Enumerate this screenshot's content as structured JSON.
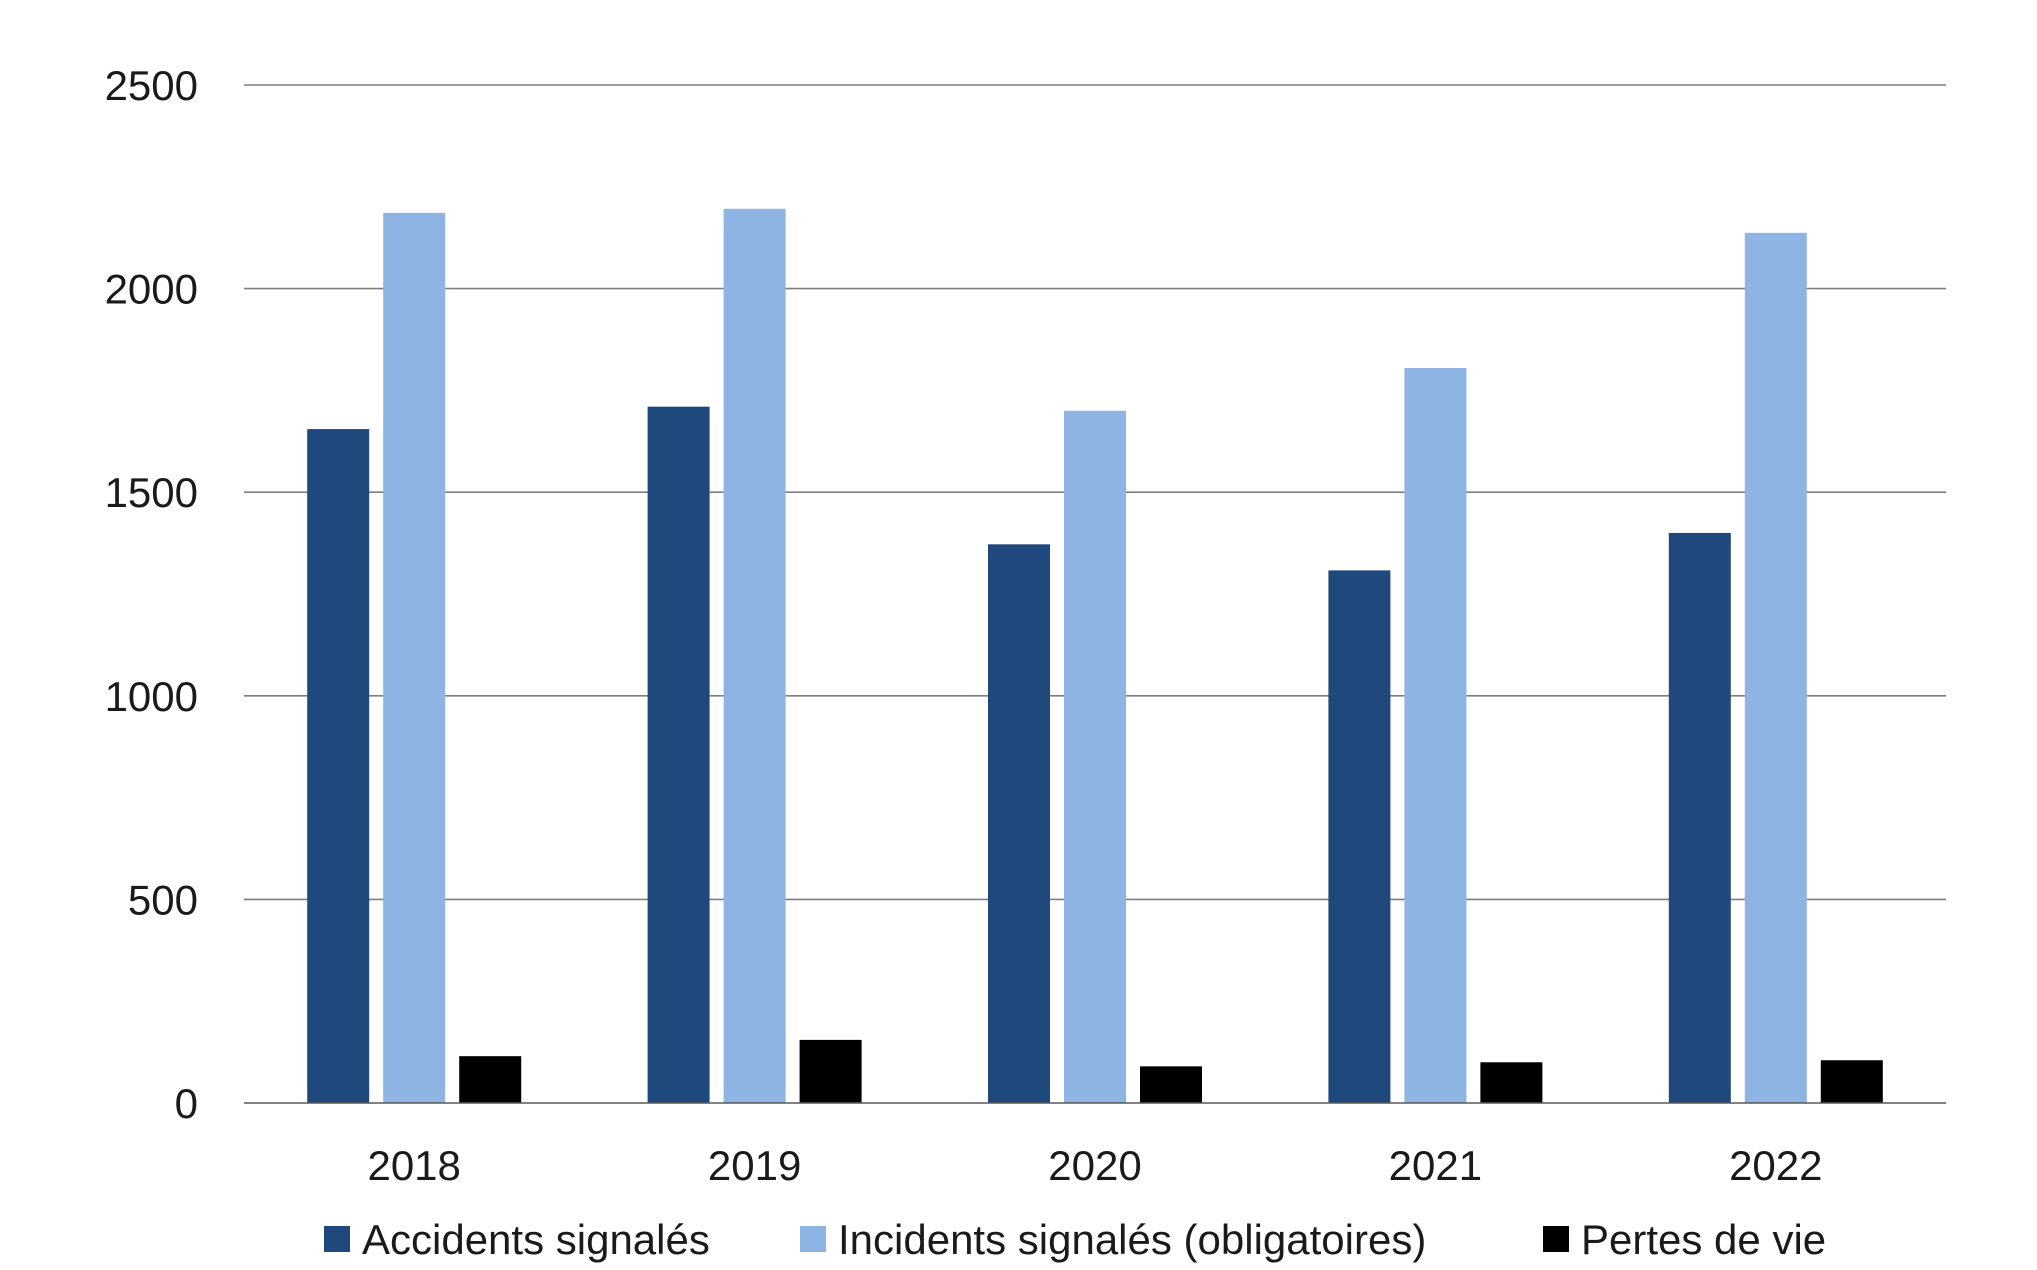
{
  "chart_data": {
    "type": "bar",
    "categories": [
      "2018",
      "2019",
      "2020",
      "2021",
      "2022"
    ],
    "series": [
      {
        "name": "Accidents signalés",
        "color": "#1f497d",
        "values": [
          1655,
          1710,
          1372,
          1308,
          1400
        ]
      },
      {
        "name": "Incidents signalés (obligatoires)",
        "color": "#8eb4e3",
        "values": [
          2186,
          2196,
          1700,
          1805,
          2137
        ]
      },
      {
        "name": "Pertes de vie",
        "color": "#000000",
        "values": [
          115,
          155,
          90,
          100,
          105
        ]
      }
    ],
    "yticks": [
      "0",
      "500",
      "1000",
      "1500",
      "2000",
      "2500"
    ],
    "ylim": [
      0,
      2500
    ],
    "grid": true,
    "legend": "bottom"
  }
}
